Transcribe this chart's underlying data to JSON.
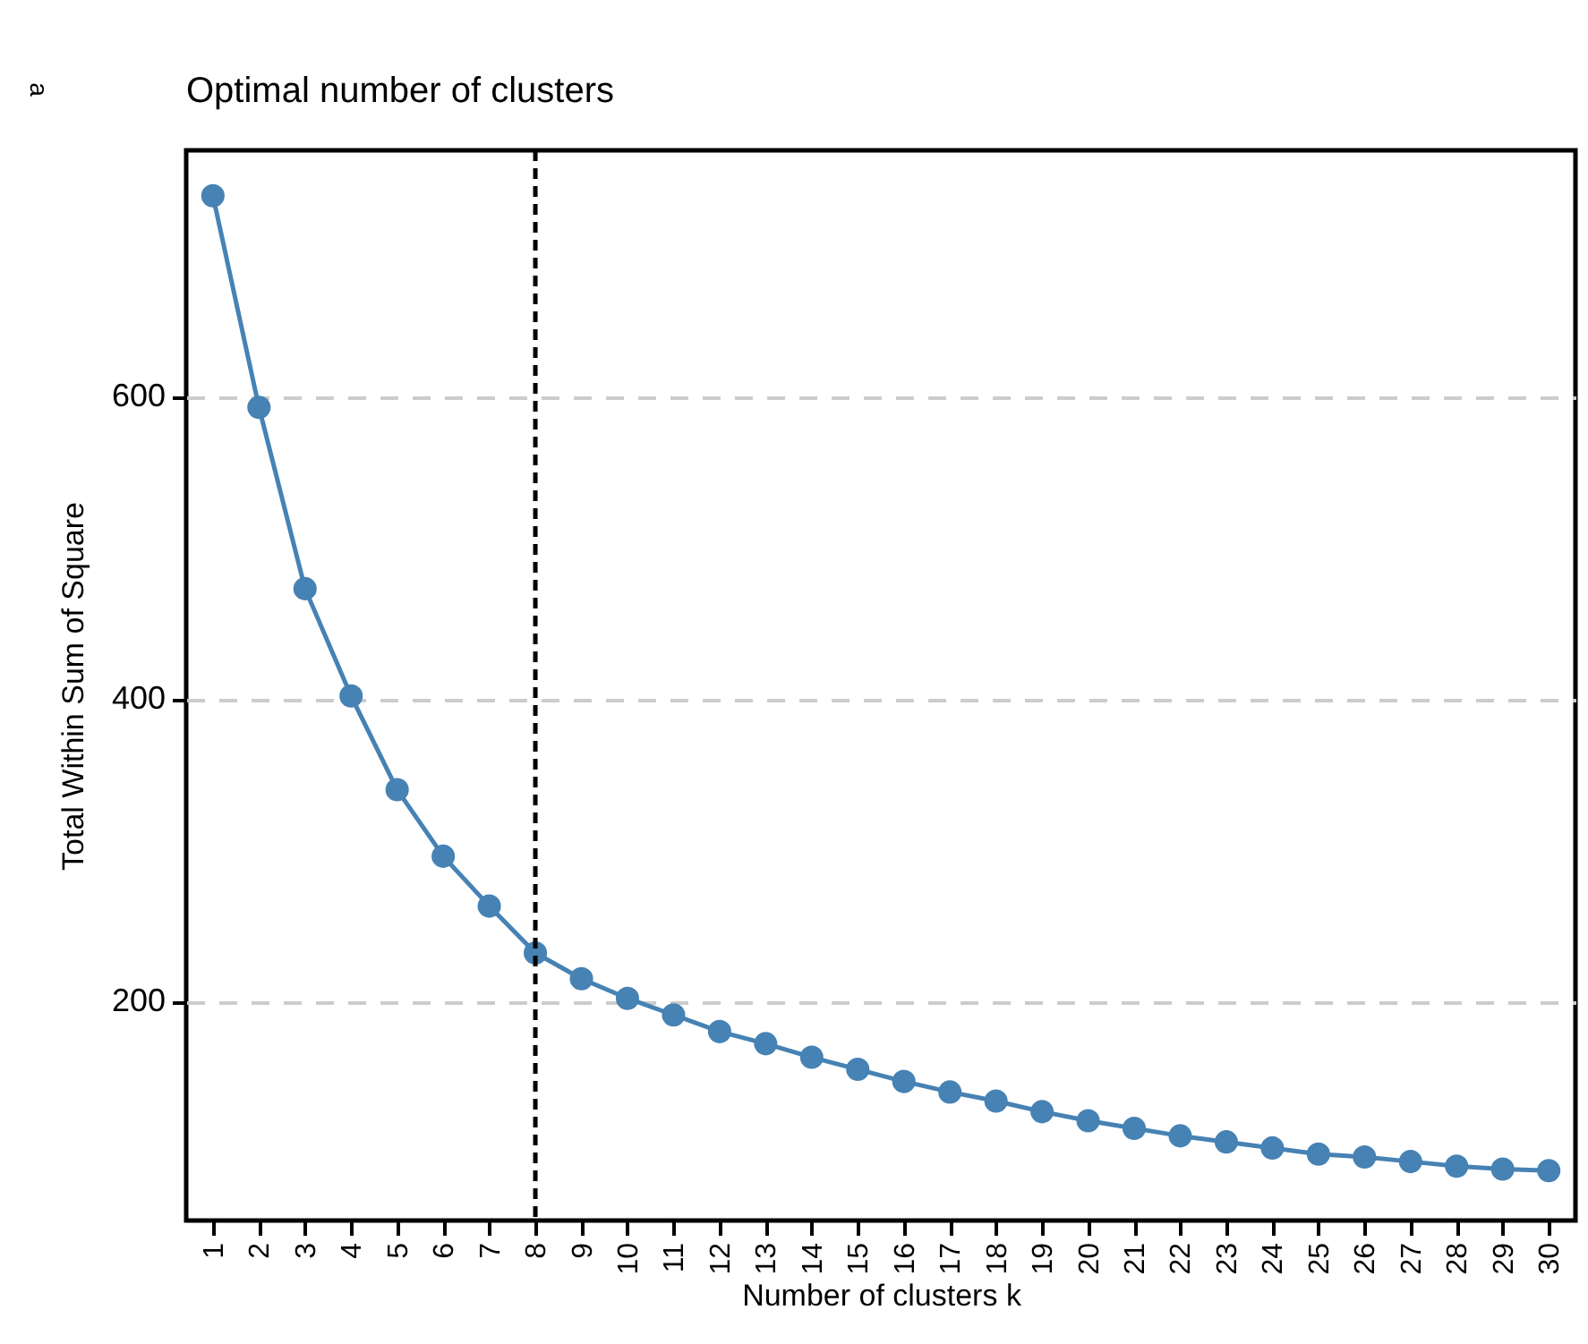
{
  "chart_data": {
    "type": "line",
    "title": "Optimal number of clusters",
    "xlabel": "Number of clusters k",
    "ylabel": "Total Within Sum of Square",
    "annotations": [
      "a"
    ],
    "categories": [
      "1",
      "2",
      "3",
      "4",
      "5",
      "6",
      "7",
      "8",
      "9",
      "10",
      "11",
      "12",
      "13",
      "14",
      "15",
      "16",
      "17",
      "18",
      "19",
      "20",
      "21",
      "22",
      "23",
      "24",
      "25",
      "26",
      "27",
      "28",
      "29",
      "30"
    ],
    "series": [
      {
        "color": "#4682b4",
        "values": [
          733,
          593,
          473,
          402,
          340,
          296,
          263,
          232,
          215,
          202,
          191,
          180,
          172,
          163,
          155,
          147,
          140,
          134,
          127,
          121,
          116,
          111,
          107,
          103,
          99,
          97,
          94,
          91,
          89,
          88
        ]
      }
    ],
    "ylim": [
      55,
      763
    ],
    "yticks": [
      200,
      400,
      600
    ],
    "grid": "y",
    "marker": "circle",
    "line_style": "solid",
    "ref_lines": [
      {
        "axis": "x",
        "value": "8",
        "color": "#000000",
        "line_style": "dashed"
      }
    ]
  }
}
